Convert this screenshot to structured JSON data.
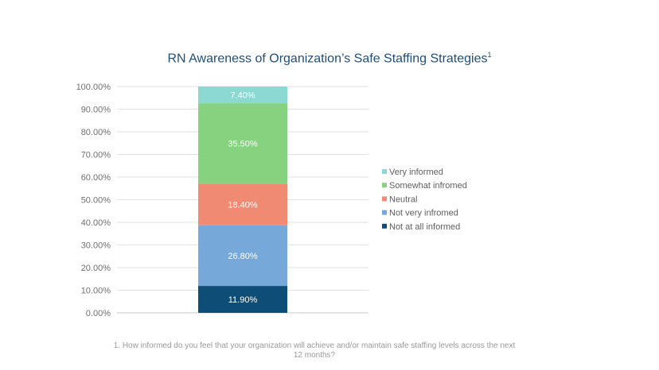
{
  "chart_data": {
    "type": "bar",
    "stacked": true,
    "title": "RN Awareness of Organization’s Safe Staffing Strategies",
    "title_superscript": "1",
    "ylim": [
      0,
      100
    ],
    "yticks": [
      "0.00%",
      "10.00%",
      "20.00%",
      "30.00%",
      "40.00%",
      "50.00%",
      "60.00%",
      "70.00%",
      "80.00%",
      "90.00%",
      "100.00%"
    ],
    "grid": true,
    "legend_position": "right",
    "series": [
      {
        "name": "Not at all informed",
        "value": 11.9,
        "label": "11.90%",
        "color": "#0e4d76"
      },
      {
        "name": "Not very infromed",
        "value": 26.8,
        "label": "26.80%",
        "color": "#76a9d9"
      },
      {
        "name": "Neutral",
        "value": 18.4,
        "label": "18.40%",
        "color": "#f08a72"
      },
      {
        "name": "Somewhat infromed",
        "value": 35.5,
        "label": "35.50%",
        "color": "#86d27e"
      },
      {
        "name": "Very informed",
        "value": 7.4,
        "label": "7.40%",
        "color": "#8cd8d3"
      }
    ],
    "legend_order": [
      "Very informed",
      "Somewhat infromed",
      "Neutral",
      "Not very infromed",
      "Not at all informed"
    ]
  },
  "footnote": "1. How informed do you feel that your organization will achieve and/or maintain safe staffing levels across the next 12 months?"
}
